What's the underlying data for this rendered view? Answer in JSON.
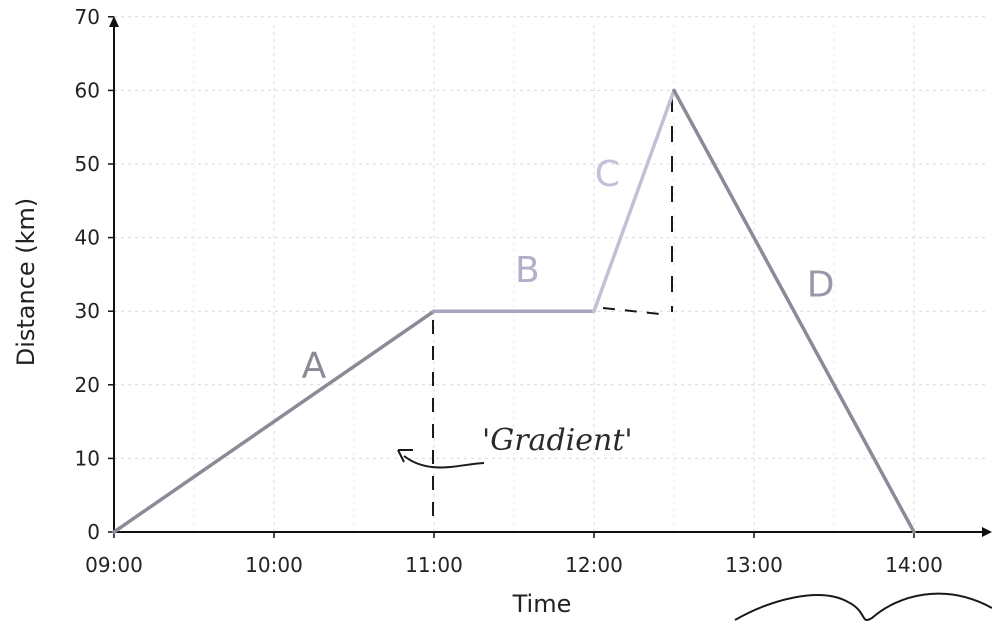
{
  "chart_data": {
    "type": "line",
    "xlabel": "Time",
    "ylabel": "Distance (km)",
    "x_ticks": [
      "09:00",
      "10:00",
      "11:00",
      "12:00",
      "13:00",
      "14:00"
    ],
    "y_ticks": [
      "0",
      "10",
      "20",
      "30",
      "40",
      "50",
      "60",
      "70"
    ],
    "xlim": [
      "09:00",
      "14:30"
    ],
    "ylim": [
      0,
      70
    ],
    "grid": true,
    "series": [
      {
        "x": [
          "09:00",
          "11:00"
        ],
        "y": [
          0,
          30
        ],
        "color": "#8c8a96"
      },
      {
        "x": [
          "11:00",
          "12:00"
        ],
        "y": [
          30,
          30
        ],
        "color": "#a7a4bf"
      },
      {
        "x": [
          "12:00",
          "12:30"
        ],
        "y": [
          30,
          60
        ],
        "color": "#c2bfd6"
      },
      {
        "x": [
          "12:30",
          "14:00"
        ],
        "y": [
          60,
          0
        ],
        "color": "#8c8a96"
      }
    ],
    "segment_labels": [
      {
        "text": "A",
        "x": "10:15",
        "y": 21,
        "color": "#8c8a96"
      },
      {
        "text": "B",
        "x": "11:35",
        "y": 34,
        "color": "#b2afc8"
      },
      {
        "text": "C",
        "x": "12:05",
        "y": 47,
        "color": "#c2bfd6"
      },
      {
        "text": "D",
        "x": "13:25",
        "y": 32,
        "color": "#9a98a8"
      }
    ],
    "annotations": [
      {
        "text": "'Gradient'",
        "kind": "handwritten"
      }
    ]
  }
}
